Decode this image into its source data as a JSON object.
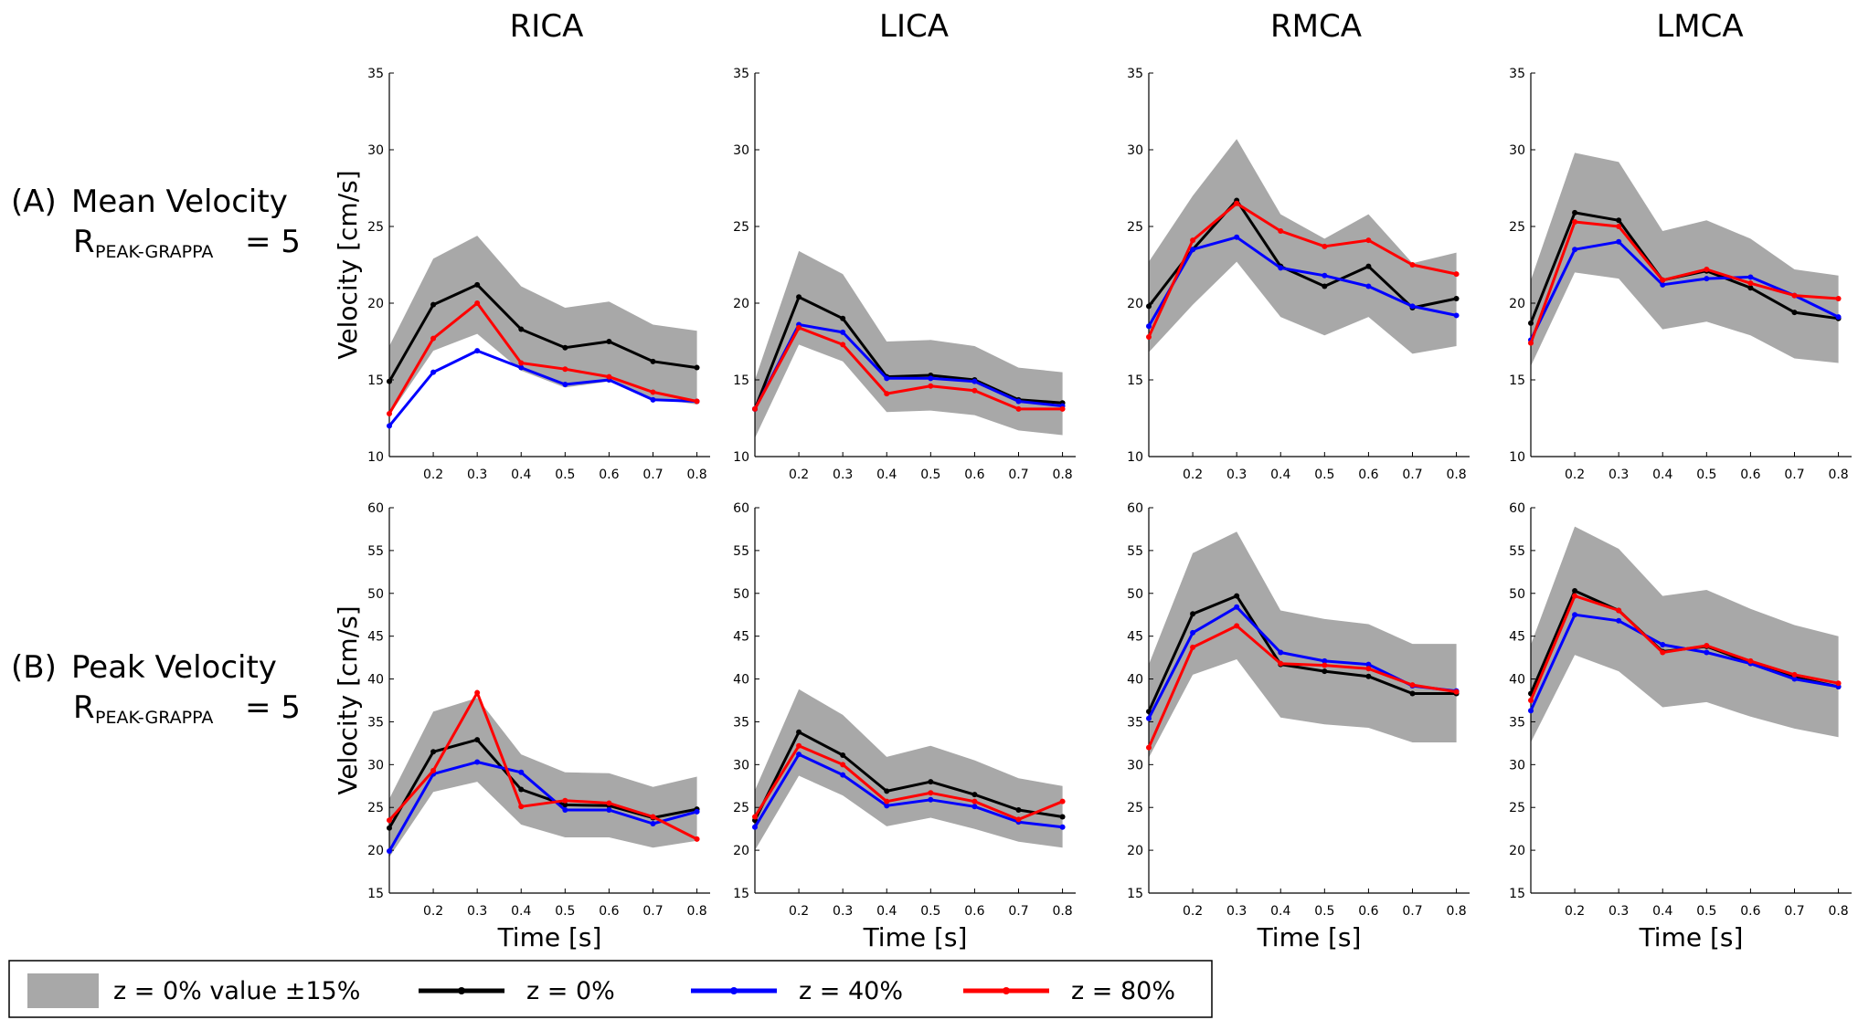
{
  "columns": [
    "RICA",
    "LICA",
    "RMCA",
    "LMCA"
  ],
  "rows": [
    {
      "prefix": "(A)",
      "name": "Mean Velocity",
      "r_main": "R",
      "r_sub": "PEAK-GRAPPA",
      "r_rest": "= 5"
    },
    {
      "prefix": "(B)",
      "name": "Peak Velocity",
      "r_main": "R",
      "r_sub": "PEAK-GRAPPA",
      "r_rest": "= 5"
    }
  ],
  "legend": {
    "band": "z = 0% value ±15%",
    "z0": "z = 0%",
    "z40": "z = 40%",
    "z80": "z = 80%"
  },
  "colors": {
    "band": "#a8a8a8",
    "z0": "#000000",
    "z40": "#0000ff",
    "z80": "#ff0000"
  },
  "chart_data": [
    {
      "type": "line",
      "row": "(A) Mean Velocity",
      "title": "RICA",
      "ylabel": "Velocity [cm/s]",
      "xlabel": "",
      "ylim": [
        10,
        35
      ],
      "yticks": [
        10,
        15,
        20,
        25,
        30,
        35
      ],
      "xticks": [
        0.2,
        0.3,
        0.4,
        0.5,
        0.6,
        0.7,
        0.8
      ],
      "x": [
        0.1,
        0.2,
        0.3,
        0.4,
        0.5,
        0.6,
        0.7,
        0.8
      ],
      "band": {
        "upper": [
          17.2,
          22.9,
          24.4,
          21.1,
          19.7,
          20.1,
          18.6,
          18.2
        ],
        "lower": [
          12.7,
          16.9,
          18.0,
          15.6,
          14.5,
          14.9,
          13.8,
          13.4
        ]
      },
      "series": [
        {
          "name": "z = 0%",
          "values": [
            14.9,
            19.9,
            21.2,
            18.3,
            17.1,
            17.5,
            16.2,
            15.8
          ]
        },
        {
          "name": "z = 40%",
          "values": [
            12.0,
            15.5,
            16.9,
            15.8,
            14.7,
            15.0,
            13.7,
            13.6
          ]
        },
        {
          "name": "z = 80%",
          "values": [
            12.8,
            17.7,
            20.0,
            16.1,
            15.7,
            15.2,
            14.2,
            13.6
          ]
        }
      ]
    },
    {
      "type": "line",
      "row": "(A) Mean Velocity",
      "title": "LICA",
      "ylabel": "",
      "xlabel": "",
      "ylim": [
        10,
        35
      ],
      "yticks": [
        10,
        15,
        20,
        25,
        30,
        35
      ],
      "xticks": [
        0.2,
        0.3,
        0.4,
        0.5,
        0.6,
        0.7,
        0.8
      ],
      "x": [
        0.1,
        0.2,
        0.3,
        0.4,
        0.5,
        0.6,
        0.7,
        0.8
      ],
      "band": {
        "upper": [
          15.0,
          23.4,
          21.9,
          17.5,
          17.6,
          17.2,
          15.8,
          15.5
        ],
        "lower": [
          11.2,
          17.3,
          16.2,
          12.9,
          13.0,
          12.7,
          11.7,
          11.4
        ]
      },
      "series": [
        {
          "name": "z = 0%",
          "values": [
            13.1,
            20.4,
            19.0,
            15.2,
            15.3,
            15.0,
            13.7,
            13.5
          ]
        },
        {
          "name": "z = 40%",
          "values": [
            13.1,
            18.6,
            18.1,
            15.1,
            15.1,
            14.9,
            13.6,
            13.3
          ]
        },
        {
          "name": "z = 80%",
          "values": [
            13.1,
            18.4,
            17.3,
            14.1,
            14.6,
            14.3,
            13.1,
            13.1
          ]
        }
      ]
    },
    {
      "type": "line",
      "row": "(A) Mean Velocity",
      "title": "RMCA",
      "ylabel": "",
      "xlabel": "",
      "ylim": [
        10,
        35
      ],
      "yticks": [
        10,
        15,
        20,
        25,
        30,
        35
      ],
      "xticks": [
        0.2,
        0.3,
        0.4,
        0.5,
        0.6,
        0.7,
        0.8
      ],
      "x": [
        0.1,
        0.2,
        0.3,
        0.4,
        0.5,
        0.6,
        0.7,
        0.8
      ],
      "band": {
        "upper": [
          22.7,
          27.0,
          30.7,
          25.8,
          24.2,
          25.8,
          22.6,
          23.3
        ],
        "lower": [
          16.8,
          19.9,
          22.7,
          19.1,
          17.9,
          19.1,
          16.7,
          17.2
        ]
      },
      "series": [
        {
          "name": "z = 0%",
          "values": [
            19.8,
            23.5,
            26.7,
            22.4,
            21.1,
            22.4,
            19.7,
            20.3
          ]
        },
        {
          "name": "z = 40%",
          "values": [
            18.5,
            23.5,
            24.3,
            22.3,
            21.8,
            21.1,
            19.8,
            19.2
          ]
        },
        {
          "name": "z = 80%",
          "values": [
            17.8,
            24.1,
            26.5,
            24.7,
            23.7,
            24.1,
            22.5,
            21.9
          ]
        }
      ]
    },
    {
      "type": "line",
      "row": "(A) Mean Velocity",
      "title": "LMCA",
      "ylabel": "",
      "xlabel": "",
      "ylim": [
        10,
        35
      ],
      "yticks": [
        10,
        15,
        20,
        25,
        30,
        35
      ],
      "xticks": [
        0.2,
        0.3,
        0.4,
        0.5,
        0.6,
        0.7,
        0.8
      ],
      "x": [
        0.1,
        0.2,
        0.3,
        0.4,
        0.5,
        0.6,
        0.7,
        0.8
      ],
      "band": {
        "upper": [
          21.5,
          29.8,
          29.2,
          24.7,
          25.4,
          24.2,
          22.2,
          21.8
        ],
        "lower": [
          15.9,
          22.0,
          21.6,
          18.3,
          18.8,
          17.9,
          16.4,
          16.1
        ]
      },
      "series": [
        {
          "name": "z = 0%",
          "values": [
            18.7,
            25.9,
            25.4,
            21.5,
            22.1,
            21.0,
            19.4,
            19.0
          ]
        },
        {
          "name": "z = 40%",
          "values": [
            17.6,
            23.5,
            24.0,
            21.2,
            21.6,
            21.7,
            20.5,
            19.1
          ]
        },
        {
          "name": "z = 80%",
          "values": [
            17.4,
            25.3,
            25.0,
            21.5,
            22.2,
            21.3,
            20.5,
            20.3
          ]
        }
      ]
    },
    {
      "type": "line",
      "row": "(B) Peak Velocity",
      "title": "RICA",
      "ylabel": "Velocity [cm/s]",
      "xlabel": "Time [s]",
      "ylim": [
        15,
        60
      ],
      "yticks": [
        15,
        20,
        25,
        30,
        35,
        40,
        45,
        50,
        55,
        60
      ],
      "xticks": [
        0.2,
        0.3,
        0.4,
        0.5,
        0.6,
        0.7,
        0.8
      ],
      "x": [
        0.1,
        0.2,
        0.3,
        0.4,
        0.5,
        0.6,
        0.7,
        0.8
      ],
      "band": {
        "upper": [
          26.0,
          36.2,
          37.8,
          31.2,
          29.1,
          29.0,
          27.4,
          28.6
        ],
        "lower": [
          19.2,
          26.8,
          28.0,
          23.0,
          21.5,
          21.5,
          20.3,
          21.1
        ]
      },
      "series": [
        {
          "name": "z = 0%",
          "values": [
            22.6,
            31.5,
            32.9,
            27.1,
            25.3,
            25.2,
            23.8,
            24.8
          ]
        },
        {
          "name": "z = 40%",
          "values": [
            19.9,
            28.9,
            30.3,
            29.1,
            24.7,
            24.7,
            23.1,
            24.5
          ]
        },
        {
          "name": "z = 80%",
          "values": [
            23.5,
            29.3,
            38.4,
            25.1,
            25.8,
            25.5,
            23.9,
            21.3
          ]
        }
      ]
    },
    {
      "type": "line",
      "row": "(B) Peak Velocity",
      "title": "LICA",
      "ylabel": "",
      "xlabel": "Time [s]",
      "ylim": [
        15,
        60
      ],
      "yticks": [
        15,
        20,
        25,
        30,
        35,
        40,
        45,
        50,
        55,
        60
      ],
      "xticks": [
        0.2,
        0.3,
        0.4,
        0.5,
        0.6,
        0.7,
        0.8
      ],
      "x": [
        0.1,
        0.2,
        0.3,
        0.4,
        0.5,
        0.6,
        0.7,
        0.8
      ],
      "band": {
        "upper": [
          27.0,
          38.8,
          35.8,
          30.9,
          32.2,
          30.5,
          28.4,
          27.5
        ],
        "lower": [
          20.0,
          28.7,
          26.4,
          22.8,
          23.8,
          22.5,
          21.0,
          20.3
        ]
      },
      "series": [
        {
          "name": "z = 0%",
          "values": [
            23.5,
            33.8,
            31.1,
            26.9,
            28.0,
            26.5,
            24.7,
            23.9
          ]
        },
        {
          "name": "z = 40%",
          "values": [
            22.7,
            31.2,
            28.8,
            25.2,
            25.9,
            25.1,
            23.3,
            22.7
          ]
        },
        {
          "name": "z = 80%",
          "values": [
            23.9,
            32.2,
            30.0,
            25.7,
            26.7,
            25.7,
            23.6,
            25.7
          ]
        }
      ]
    },
    {
      "type": "line",
      "row": "(B) Peak Velocity",
      "title": "RMCA",
      "ylabel": "",
      "xlabel": "Time [s]",
      "ylim": [
        15,
        60
      ],
      "yticks": [
        15,
        20,
        25,
        30,
        35,
        40,
        45,
        50,
        55,
        60
      ],
      "xticks": [
        0.2,
        0.3,
        0.4,
        0.5,
        0.6,
        0.7,
        0.8
      ],
      "x": [
        0.1,
        0.2,
        0.3,
        0.4,
        0.5,
        0.6,
        0.7,
        0.8
      ],
      "band": {
        "upper": [
          41.7,
          54.7,
          57.2,
          48.0,
          47.0,
          46.4,
          44.1,
          44.1
        ],
        "lower": [
          30.8,
          40.5,
          42.3,
          35.5,
          34.7,
          34.3,
          32.6,
          32.6
        ]
      },
      "series": [
        {
          "name": "z = 0%",
          "values": [
            36.2,
            47.6,
            49.7,
            41.7,
            40.9,
            40.3,
            38.3,
            38.3
          ]
        },
        {
          "name": "z = 40%",
          "values": [
            35.4,
            45.4,
            48.4,
            43.1,
            42.1,
            41.7,
            39.2,
            38.6
          ]
        },
        {
          "name": "z = 80%",
          "values": [
            32.0,
            43.7,
            46.2,
            41.8,
            41.6,
            41.2,
            39.3,
            38.5
          ]
        }
      ]
    },
    {
      "type": "line",
      "row": "(B) Peak Velocity",
      "title": "LMCA",
      "ylabel": "",
      "xlabel": "Time [s]",
      "ylim": [
        15,
        60
      ],
      "yticks": [
        15,
        20,
        25,
        30,
        35,
        40,
        45,
        50,
        55,
        60
      ],
      "xticks": [
        0.2,
        0.3,
        0.4,
        0.5,
        0.6,
        0.7,
        0.8
      ],
      "x": [
        0.1,
        0.2,
        0.3,
        0.4,
        0.5,
        0.6,
        0.7,
        0.8
      ],
      "band": {
        "upper": [
          44.0,
          57.8,
          55.2,
          49.7,
          50.4,
          48.2,
          46.3,
          45.0
        ],
        "lower": [
          32.6,
          42.8,
          40.9,
          36.7,
          37.3,
          35.6,
          34.2,
          33.2
        ]
      },
      "series": [
        {
          "name": "z = 0%",
          "values": [
            38.3,
            50.3,
            48.0,
            43.2,
            43.8,
            41.9,
            40.2,
            39.1
          ]
        },
        {
          "name": "z = 40%",
          "values": [
            36.3,
            47.5,
            46.8,
            44.0,
            43.1,
            41.8,
            40.0,
            39.1
          ]
        },
        {
          "name": "z = 80%",
          "values": [
            37.5,
            49.7,
            48.0,
            43.1,
            43.9,
            42.1,
            40.5,
            39.5
          ]
        }
      ]
    }
  ]
}
